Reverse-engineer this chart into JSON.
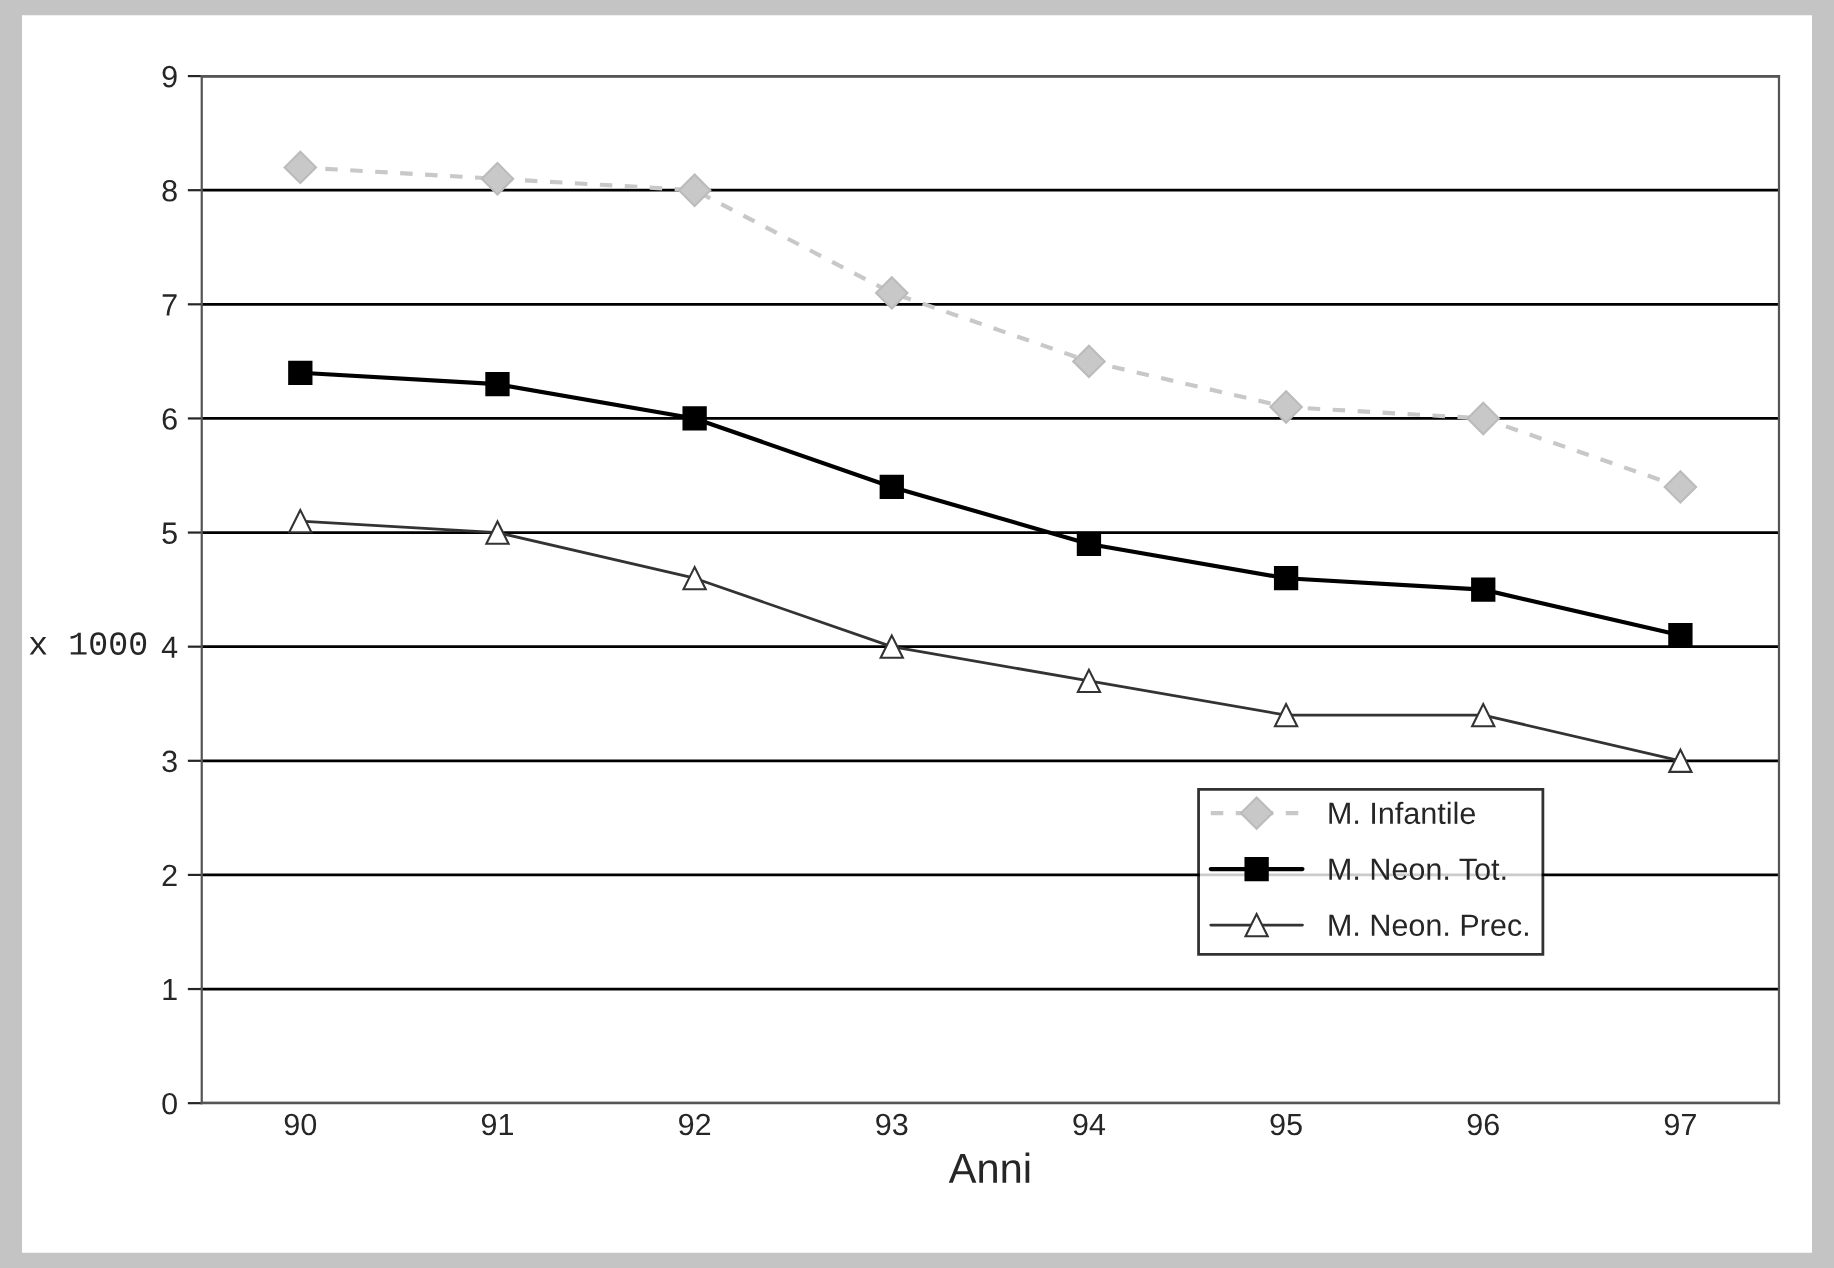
{
  "chart_data": {
    "type": "line",
    "xlabel": "Anni",
    "ylabel": "x 1000",
    "categories": [
      "90",
      "91",
      "92",
      "93",
      "94",
      "95",
      "96",
      "97"
    ],
    "series": [
      {
        "name": "M. Infantile",
        "color": "#c8c8c8",
        "marker": "diamond",
        "line_style": "dashed",
        "values": [
          8.2,
          8.1,
          8.0,
          7.1,
          6.5,
          6.1,
          6.0,
          5.4
        ]
      },
      {
        "name": "M. Neon. Tot.",
        "color": "#000000",
        "marker": "square",
        "line_style": "solid",
        "values": [
          6.4,
          6.3,
          6.0,
          5.4,
          4.9,
          4.6,
          4.5,
          4.1
        ]
      },
      {
        "name": "M. Neon. Prec.",
        "color": "#333333",
        "marker": "triangle",
        "line_style": "solid",
        "values": [
          5.1,
          5.0,
          4.6,
          4.0,
          3.7,
          3.4,
          3.4,
          3.0
        ]
      }
    ],
    "ylim": [
      0,
      9
    ],
    "yticks": [
      0,
      1,
      2,
      3,
      4,
      5,
      6,
      7,
      8,
      9
    ],
    "grid": "y",
    "legend": "bottom right"
  }
}
